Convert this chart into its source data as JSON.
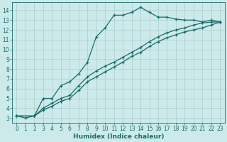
{
  "xlabel": "Humidex (Indice chaleur)",
  "bg_color": "#cceaea",
  "grid_color": "#aacccc",
  "line_color": "#1a6b6b",
  "xlim": [
    -0.5,
    23.5
  ],
  "ylim": [
    2.5,
    14.8
  ],
  "xticks": [
    0,
    1,
    2,
    3,
    4,
    5,
    6,
    7,
    8,
    9,
    10,
    11,
    12,
    13,
    14,
    15,
    16,
    17,
    18,
    19,
    20,
    21,
    22,
    23
  ],
  "yticks": [
    3,
    4,
    5,
    6,
    7,
    8,
    9,
    10,
    11,
    12,
    13,
    14
  ],
  "series1_x": [
    0,
    1,
    2,
    3,
    4,
    5,
    6,
    7,
    8,
    9,
    10,
    11,
    12,
    13,
    14,
    15,
    16,
    17,
    18,
    19,
    20,
    21,
    22,
    23
  ],
  "series1_y": [
    3.2,
    3.0,
    3.2,
    5.0,
    5.0,
    6.3,
    6.7,
    7.5,
    8.7,
    11.3,
    12.2,
    13.5,
    13.5,
    13.8,
    14.3,
    13.8,
    13.3,
    13.3,
    13.1,
    13.0,
    13.0,
    12.8,
    13.0,
    12.8
  ],
  "series2_x": [
    0,
    2,
    3,
    4,
    5,
    6,
    7,
    8,
    9,
    10,
    11,
    12,
    13,
    14,
    15,
    16,
    17,
    18,
    19,
    20,
    21,
    22,
    23
  ],
  "series2_y": [
    3.2,
    3.2,
    4.0,
    4.5,
    5.0,
    5.3,
    6.3,
    7.2,
    7.8,
    8.3,
    8.7,
    9.2,
    9.7,
    10.2,
    10.8,
    11.3,
    11.7,
    12.0,
    12.2,
    12.5,
    12.7,
    12.8,
    12.8
  ],
  "series3_x": [
    0,
    2,
    3,
    4,
    5,
    6,
    7,
    8,
    9,
    10,
    11,
    12,
    13,
    14,
    15,
    16,
    17,
    18,
    19,
    20,
    21,
    22,
    23
  ],
  "series3_y": [
    3.2,
    3.2,
    3.8,
    4.2,
    4.7,
    5.0,
    5.8,
    6.7,
    7.2,
    7.7,
    8.2,
    8.7,
    9.3,
    9.7,
    10.3,
    10.8,
    11.2,
    11.5,
    11.8,
    12.0,
    12.2,
    12.5,
    12.8
  ],
  "tick_fontsize": 5.5,
  "xlabel_fontsize": 6.5
}
